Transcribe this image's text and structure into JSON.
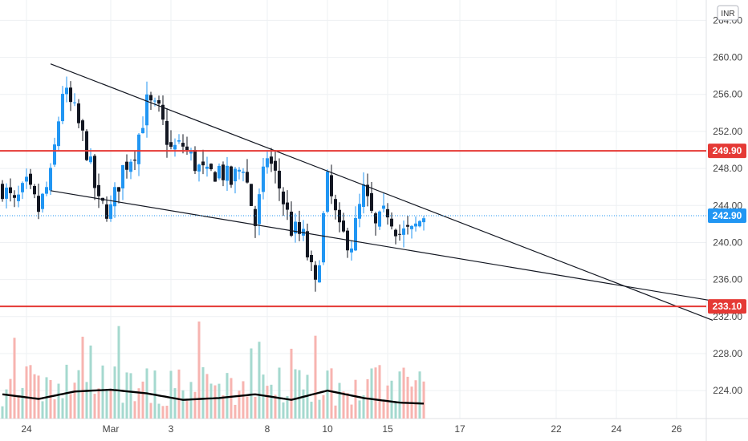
{
  "chart_data": {
    "type": "candlestick",
    "currency": "INR",
    "colors": {
      "up": "#2196f3",
      "down": "#131722",
      "grid": "#eef0f3",
      "level": "#e53935",
      "current": "#2196f3",
      "trend": "#131722",
      "vol_up": "#a5d9cf",
      "vol_down": "#f7b4b0",
      "vol_ma": "#000000"
    },
    "price_axis": {
      "ticks": [
        "264.00",
        "260.00",
        "256.00",
        "252.00",
        "248.00",
        "244.00",
        "240.00",
        "236.00",
        "232.00",
        "228.00",
        "224.00"
      ],
      "range": [
        220.2,
        266.2
      ]
    },
    "x_axis": {
      "labels": [
        {
          "text": "24",
          "idx": 2
        },
        {
          "text": "Mar",
          "idx": 9
        },
        {
          "text": "3",
          "idx": 14
        },
        {
          "text": "8",
          "idx": 22
        },
        {
          "text": "10",
          "idx": 27
        },
        {
          "text": "15",
          "idx": 32
        },
        {
          "text": "17",
          "idx": 38
        },
        {
          "text": "22",
          "idx": 46
        },
        {
          "text": "24",
          "idx": 51
        },
        {
          "text": "26",
          "idx": 56
        }
      ],
      "bar_count": 60
    },
    "levels": [
      {
        "label": "249.90",
        "value": 249.9
      },
      {
        "label": "233.10",
        "value": 233.1
      }
    ],
    "current_price": {
      "label": "242.90",
      "value": 242.9
    },
    "trendlines": [
      {
        "from": [
          4.0,
          259.3
        ],
        "to": [
          59.0,
          231.6
        ]
      },
      {
        "from": [
          4.0,
          245.6
        ],
        "to": [
          59.0,
          233.7
        ]
      }
    ],
    "anchors": [
      [
        0,
        246
      ],
      [
        1,
        244
      ],
      [
        2,
        246
      ],
      [
        3,
        243.5
      ],
      [
        4,
        247
      ],
      [
        5,
        256.5
      ],
      [
        6,
        254
      ],
      [
        7,
        250
      ],
      [
        8,
        244
      ],
      [
        9,
        243.5
      ],
      [
        10,
        248
      ],
      [
        11,
        250
      ],
      [
        12,
        255
      ],
      [
        13,
        254
      ],
      [
        14,
        250
      ],
      [
        15,
        250.5
      ],
      [
        16,
        248.5
      ],
      [
        17,
        247
      ],
      [
        18,
        248
      ],
      [
        19,
        246.5
      ],
      [
        20,
        248.5
      ],
      [
        21,
        242
      ],
      [
        22,
        249.5
      ],
      [
        23,
        246
      ],
      [
        24,
        241.5
      ],
      [
        25,
        240.5
      ],
      [
        26,
        235
      ],
      [
        27,
        246.5
      ],
      [
        28,
        241
      ],
      [
        29,
        240
      ],
      [
        30,
        245.5
      ],
      [
        31,
        241.5
      ],
      [
        32,
        243.5
      ],
      [
        33,
        241
      ],
      [
        34,
        241
      ],
      [
        35,
        243.0
      ]
    ],
    "volume_ma": [
      [
        0,
        223.6
      ],
      [
        3,
        223.1
      ],
      [
        6,
        223.9
      ],
      [
        9,
        224.1
      ],
      [
        12,
        223.7
      ],
      [
        15,
        223.0
      ],
      [
        18,
        223.2
      ],
      [
        21,
        223.6
      ],
      [
        24,
        223.0
      ],
      [
        27,
        224.0
      ],
      [
        30,
        223.2
      ],
      [
        33,
        222.7
      ],
      [
        35,
        222.6
      ]
    ]
  }
}
